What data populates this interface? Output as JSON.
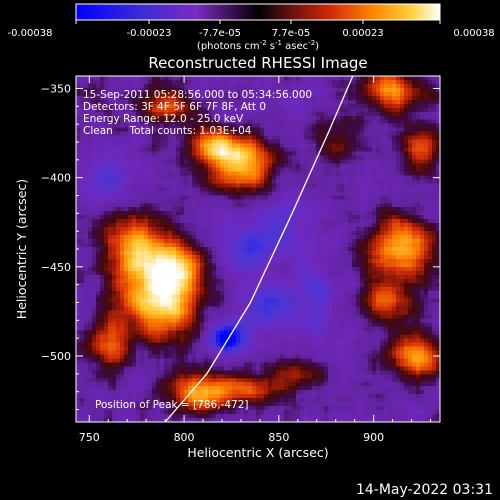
{
  "colorbar": {
    "ticks": [
      "-0.00038",
      "-0.00023",
      "-7.7e-05",
      "7.7e-05",
      "0.00023",
      "0.00038"
    ],
    "unit_label_parts": {
      "p1": "(photons cm",
      "sup1": "-2",
      "p2": " s",
      "sup2": "-1",
      "p3": " asec",
      "sup3": "-2",
      "p4": ")"
    }
  },
  "title": "Reconstructed RHESSI Image",
  "info_lines": [
    "15-Sep-2011 05:28:56.000 to 05:34:56.000",
    "Detectors: 3F 4F 5F 6F 7F 8F, Att 0",
    "Energy Range: 12.0 - 25.0 keV",
    "Clean     Total counts: 1.03E+04"
  ],
  "peak_label": "Position of Peak = [786,-472]",
  "footer_date": "14-May-2022 03:31",
  "chart_data": {
    "type": "heatmap",
    "title": "Reconstructed RHESSI Image",
    "xlabel": "Heliocentric X (arcsec)",
    "ylabel": "Heliocentric Y (arcsec)",
    "xlim": [
      743,
      935
    ],
    "ylim": [
      -537,
      -343
    ],
    "x_ticks": [
      750,
      800,
      850,
      900
    ],
    "y_ticks": [
      -350,
      -400,
      -450,
      -500
    ],
    "x_tick_labels": [
      "750",
      "800",
      "850",
      "900"
    ],
    "y_tick_labels": [
      "−350",
      "−400",
      "−450",
      "−500"
    ],
    "value_range": [
      -0.00038,
      0.00038
    ],
    "colormap": [
      "#0000ff",
      "#4a3fcf",
      "#7a2cc0",
      "#2a0a3a",
      "#5c0f10",
      "#c8280a",
      "#ff7a00",
      "#ffc830",
      "#ffffff"
    ],
    "peak_position": [
      786,
      -472
    ],
    "limb_points": [
      [
        790,
        -537
      ],
      [
        812,
        -510
      ],
      [
        835,
        -470
      ],
      [
        857,
        -420
      ],
      [
        876,
        -375
      ],
      [
        889,
        -343
      ]
    ],
    "blobs": [
      {
        "x": 787,
        "y": -470,
        "sx": 14,
        "sy": 14,
        "amp": 1.0
      },
      {
        "x": 775,
        "y": -440,
        "sx": 11,
        "sy": 13,
        "amp": 0.85
      },
      {
        "x": 797,
        "y": -450,
        "sx": 9,
        "sy": 10,
        "amp": 0.75
      },
      {
        "x": 830,
        "y": -392,
        "sx": 12,
        "sy": 11,
        "amp": 0.9
      },
      {
        "x": 815,
        "y": -382,
        "sx": 8,
        "sy": 7,
        "amp": 0.7
      },
      {
        "x": 790,
        "y": -360,
        "sx": 10,
        "sy": 7,
        "amp": 0.55
      },
      {
        "x": 808,
        "y": -520,
        "sx": 12,
        "sy": 8,
        "amp": 0.85
      },
      {
        "x": 835,
        "y": -518,
        "sx": 10,
        "sy": 6,
        "amp": 0.55
      },
      {
        "x": 760,
        "y": -495,
        "sx": 8,
        "sy": 10,
        "amp": 0.65
      },
      {
        "x": 908,
        "y": -352,
        "sx": 12,
        "sy": 8,
        "amp": 0.7
      },
      {
        "x": 925,
        "y": -385,
        "sx": 8,
        "sy": 10,
        "amp": 0.55
      },
      {
        "x": 915,
        "y": -440,
        "sx": 13,
        "sy": 12,
        "amp": 0.85
      },
      {
        "x": 908,
        "y": -470,
        "sx": 10,
        "sy": 8,
        "amp": 0.6
      },
      {
        "x": 922,
        "y": -500,
        "sx": 10,
        "sy": 9,
        "amp": 0.75
      },
      {
        "x": 860,
        "y": -510,
        "sx": 9,
        "sy": 7,
        "amp": 0.45
      },
      {
        "x": 880,
        "y": -380,
        "sx": 9,
        "sy": 9,
        "amp": 0.35
      },
      {
        "x": 823,
        "y": -490,
        "sx": 7,
        "sy": 6,
        "amp": -0.9
      },
      {
        "x": 845,
        "y": -472,
        "sx": 9,
        "sy": 8,
        "amp": -0.55
      },
      {
        "x": 835,
        "y": -440,
        "sx": 8,
        "sy": 8,
        "amp": -0.45
      },
      {
        "x": 850,
        "y": -430,
        "sx": 12,
        "sy": 12,
        "amp": -0.3
      },
      {
        "x": 760,
        "y": -400,
        "sx": 9,
        "sy": 10,
        "amp": -0.35
      },
      {
        "x": 870,
        "y": -470,
        "sx": 8,
        "sy": 14,
        "amp": -0.35
      }
    ]
  }
}
